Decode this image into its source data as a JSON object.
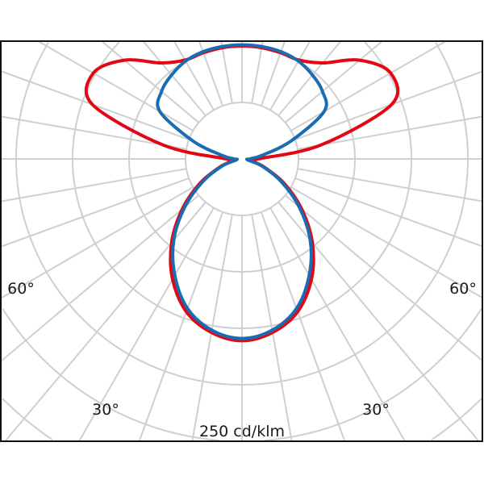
{
  "chart_data": {
    "type": "polar-line",
    "angle_reference": "0 deg = nadir (down), 180 deg = zenith (up), symmetric left/right",
    "angles_deg": [
      0,
      10,
      20,
      30,
      40,
      50,
      60,
      70,
      80,
      90,
      100,
      110,
      120,
      130,
      140,
      150,
      160,
      170,
      180
    ],
    "ring_step": 50,
    "ring_count": 10,
    "spoke_step_deg": 10,
    "grid": true,
    "scale_label": "250 cd/klm",
    "angle_labels": {
      "left_60": "60°",
      "right_60": "60°",
      "left_30": "30°",
      "right_30": "30°"
    },
    "series": [
      {
        "color": "#e30613",
        "values": [
          161,
          156,
          144,
          123,
          97,
          69,
          43,
          21,
          9,
          14,
          71,
          141,
          152,
          136,
          111,
          101,
          100,
          100,
          100
        ]
      },
      {
        "color": "#1b6db3",
        "values": [
          159,
          154,
          141,
          119,
          94,
          66,
          40,
          19,
          5,
          7,
          18,
          46,
          84,
          93,
          97,
          100,
          101,
          101,
          101
        ]
      }
    ],
    "grid_color": "#cfcfcf"
  }
}
